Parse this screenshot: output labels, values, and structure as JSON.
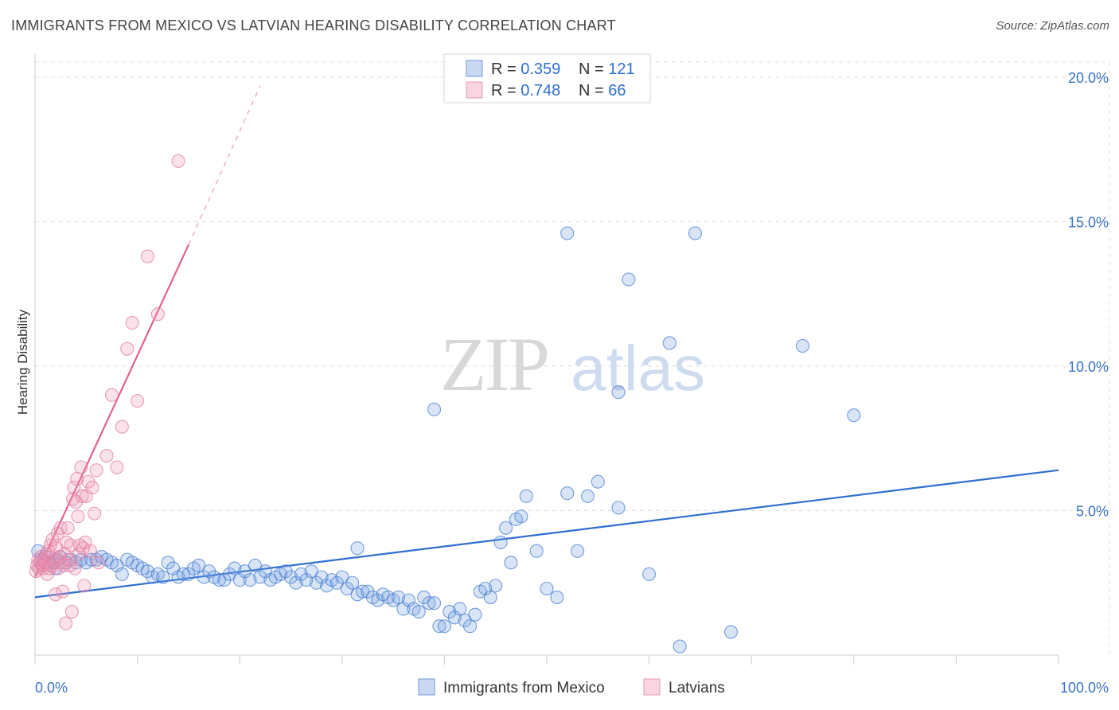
{
  "title": "IMMIGRANTS FROM MEXICO VS LATVIAN HEARING DISABILITY CORRELATION CHART",
  "source": "Source: ZipAtlas.com",
  "watermark": {
    "zip": "ZIP",
    "atlas": "atlas"
  },
  "colors": {
    "blue": "#4a7fd1",
    "blue_fill": "rgba(120,160,225,0.28)",
    "blue_line": "#2f6fd0",
    "pink": "#e07ca0",
    "pink_fill": "rgba(240,150,180,0.28)",
    "pink_line": "#e0618f",
    "grid": "#dddddd"
  },
  "legend": {
    "blue": {
      "r_label": "R = ",
      "r_value": "0.359",
      "n_label": "N = ",
      "n_value": "121"
    },
    "pink": {
      "r_label": "R = ",
      "r_value": "0.748",
      "n_label": "N = ",
      "n_value": "66"
    }
  },
  "chart_data": {
    "type": "scatter",
    "title": "IMMIGRANTS FROM MEXICO VS LATVIAN HEARING DISABILITY CORRELATION CHART",
    "xlabel": "",
    "ylabel": "Hearing Disability",
    "xlim": [
      0,
      100
    ],
    "ylim": [
      0,
      20
    ],
    "x_tick_labels": [
      "0.0%",
      "100.0%"
    ],
    "y_ticks": [
      5,
      10,
      15,
      20
    ],
    "y_tick_labels": [
      "5.0%",
      "10.0%",
      "15.0%",
      "20.0%"
    ],
    "grid": true,
    "legend_position": "top-center",
    "series": [
      {
        "name": "Immigrants from Mexico",
        "color": "#4a7fd1",
        "trend": {
          "x": [
            0,
            100
          ],
          "y": [
            2.0,
            6.4
          ]
        },
        "points": [
          [
            0.3,
            3.6
          ],
          [
            0.6,
            3.3
          ],
          [
            0.8,
            3.1
          ],
          [
            1.0,
            3.4
          ],
          [
            1.2,
            3.2
          ],
          [
            1.5,
            3.2
          ],
          [
            1.8,
            3.2
          ],
          [
            2.0,
            3.0
          ],
          [
            2.2,
            3.3
          ],
          [
            2.5,
            3.4
          ],
          [
            3.0,
            3.2
          ],
          [
            3.5,
            3.3
          ],
          [
            4.0,
            3.2
          ],
          [
            4.5,
            3.3
          ],
          [
            5.0,
            3.2
          ],
          [
            5.5,
            3.3
          ],
          [
            6.0,
            3.3
          ],
          [
            6.5,
            3.4
          ],
          [
            7.0,
            3.3
          ],
          [
            7.5,
            3.2
          ],
          [
            8.0,
            3.1
          ],
          [
            8.5,
            2.8
          ],
          [
            9.0,
            3.3
          ],
          [
            9.5,
            3.2
          ],
          [
            10.0,
            3.1
          ],
          [
            10.5,
            3.0
          ],
          [
            11.0,
            2.9
          ],
          [
            11.5,
            2.7
          ],
          [
            12.0,
            2.8
          ],
          [
            12.5,
            2.7
          ],
          [
            13.0,
            3.2
          ],
          [
            13.5,
            3.0
          ],
          [
            14.0,
            2.7
          ],
          [
            14.5,
            2.8
          ],
          [
            15.0,
            2.8
          ],
          [
            15.5,
            3.0
          ],
          [
            16.0,
            3.1
          ],
          [
            16.5,
            2.7
          ],
          [
            17.0,
            2.9
          ],
          [
            17.5,
            2.7
          ],
          [
            18.0,
            2.6
          ],
          [
            18.5,
            2.6
          ],
          [
            19.0,
            2.8
          ],
          [
            19.5,
            3.0
          ],
          [
            20.0,
            2.6
          ],
          [
            20.5,
            2.9
          ],
          [
            21.0,
            2.6
          ],
          [
            21.5,
            3.1
          ],
          [
            22.0,
            2.7
          ],
          [
            22.5,
            2.9
          ],
          [
            23.0,
            2.6
          ],
          [
            23.5,
            2.7
          ],
          [
            24.0,
            2.8
          ],
          [
            24.5,
            2.9
          ],
          [
            25.0,
            2.7
          ],
          [
            25.5,
            2.5
          ],
          [
            26.0,
            2.8
          ],
          [
            26.5,
            2.6
          ],
          [
            27.0,
            2.9
          ],
          [
            27.5,
            2.5
          ],
          [
            28.0,
            2.7
          ],
          [
            28.5,
            2.4
          ],
          [
            29.0,
            2.6
          ],
          [
            29.5,
            2.5
          ],
          [
            30.0,
            2.7
          ],
          [
            30.5,
            2.3
          ],
          [
            31.0,
            2.5
          ],
          [
            31.5,
            2.1
          ],
          [
            32.0,
            2.2
          ],
          [
            32.5,
            2.2
          ],
          [
            33.0,
            2.0
          ],
          [
            33.5,
            1.9
          ],
          [
            34.0,
            2.1
          ],
          [
            34.5,
            2.0
          ],
          [
            35.0,
            1.9
          ],
          [
            35.5,
            2.0
          ],
          [
            36.0,
            1.6
          ],
          [
            36.5,
            1.9
          ],
          [
            37.0,
            1.6
          ],
          [
            37.5,
            1.5
          ],
          [
            38.0,
            2.0
          ],
          [
            38.5,
            1.8
          ],
          [
            39.0,
            1.8
          ],
          [
            39.5,
            1.0
          ],
          [
            40.0,
            1.0
          ],
          [
            40.5,
            1.5
          ],
          [
            41.0,
            1.3
          ],
          [
            41.5,
            1.6
          ],
          [
            42.0,
            1.2
          ],
          [
            42.5,
            1.0
          ],
          [
            43.0,
            1.4
          ],
          [
            43.5,
            2.2
          ],
          [
            44.0,
            2.3
          ],
          [
            44.5,
            2.0
          ],
          [
            45.0,
            2.4
          ],
          [
            45.5,
            3.9
          ],
          [
            46.0,
            4.4
          ],
          [
            46.5,
            3.2
          ],
          [
            47.0,
            4.7
          ],
          [
            47.5,
            4.8
          ],
          [
            48.0,
            5.5
          ],
          [
            49.0,
            3.6
          ],
          [
            50.0,
            2.3
          ],
          [
            51.0,
            2.0
          ],
          [
            52.0,
            5.6
          ],
          [
            53.0,
            3.6
          ],
          [
            54.0,
            5.5
          ],
          [
            55.0,
            6.0
          ],
          [
            57.0,
            5.1
          ],
          [
            60.0,
            2.8
          ],
          [
            31.5,
            3.7
          ],
          [
            39.0,
            8.5
          ],
          [
            52.0,
            14.6
          ],
          [
            58.0,
            13.0
          ],
          [
            62.0,
            10.8
          ],
          [
            64.5,
            14.6
          ],
          [
            75.0,
            10.7
          ],
          [
            80.0,
            8.3
          ],
          [
            57.0,
            9.1
          ],
          [
            63.0,
            0.3
          ],
          [
            68.0,
            0.8
          ]
        ]
      },
      {
        "name": "Latvians",
        "color": "#e07ca0",
        "trend": {
          "x": [
            0,
            15
          ],
          "y": [
            2.7,
            14.2
          ]
        },
        "trend_dashed": {
          "x": [
            15,
            22
          ],
          "y": [
            14.2,
            19.7
          ]
        },
        "points": [
          [
            0.1,
            2.9
          ],
          [
            0.2,
            3.1
          ],
          [
            0.3,
            3.3
          ],
          [
            0.4,
            3.0
          ],
          [
            0.5,
            3.2
          ],
          [
            0.6,
            3.4
          ],
          [
            0.7,
            3.1
          ],
          [
            0.8,
            3.0
          ],
          [
            0.9,
            3.3
          ],
          [
            1.0,
            3.2
          ],
          [
            1.1,
            3.5
          ],
          [
            1.2,
            2.8
          ],
          [
            1.3,
            3.6
          ],
          [
            1.4,
            3.0
          ],
          [
            1.5,
            3.8
          ],
          [
            1.6,
            3.1
          ],
          [
            1.7,
            4.0
          ],
          [
            1.8,
            3.3
          ],
          [
            1.9,
            3.2
          ],
          [
            2.0,
            2.1
          ],
          [
            2.1,
            3.7
          ],
          [
            2.2,
            4.2
          ],
          [
            2.3,
            3.0
          ],
          [
            2.4,
            3.4
          ],
          [
            2.5,
            4.4
          ],
          [
            2.6,
            3.2
          ],
          [
            2.7,
            2.2
          ],
          [
            2.8,
            3.1
          ],
          [
            2.9,
            3.5
          ],
          [
            3.0,
            1.1
          ],
          [
            3.1,
            3.9
          ],
          [
            3.2,
            4.4
          ],
          [
            3.3,
            3.3
          ],
          [
            3.4,
            3.1
          ],
          [
            3.5,
            3.8
          ],
          [
            3.6,
            1.5
          ],
          [
            3.7,
            5.4
          ],
          [
            3.8,
            5.8
          ],
          [
            3.9,
            3.0
          ],
          [
            4.0,
            5.3
          ],
          [
            4.1,
            6.1
          ],
          [
            4.2,
            4.8
          ],
          [
            4.3,
            3.5
          ],
          [
            4.4,
            3.8
          ],
          [
            4.5,
            6.5
          ],
          [
            4.6,
            5.5
          ],
          [
            4.7,
            3.7
          ],
          [
            4.8,
            2.4
          ],
          [
            4.9,
            3.9
          ],
          [
            5.0,
            5.5
          ],
          [
            5.2,
            6.0
          ],
          [
            5.4,
            3.6
          ],
          [
            5.6,
            5.8
          ],
          [
            5.8,
            4.9
          ],
          [
            6.0,
            6.4
          ],
          [
            6.2,
            3.2
          ],
          [
            7.0,
            6.9
          ],
          [
            7.5,
            9.0
          ],
          [
            8.0,
            6.5
          ],
          [
            8.5,
            7.9
          ],
          [
            9.0,
            10.6
          ],
          [
            9.5,
            11.5
          ],
          [
            10.0,
            8.8
          ],
          [
            11.0,
            13.8
          ],
          [
            12.0,
            11.8
          ],
          [
            14.0,
            17.1
          ]
        ]
      }
    ]
  },
  "bottom_legend": {
    "blue": "Immigrants from Mexico",
    "pink": "Latvians"
  }
}
